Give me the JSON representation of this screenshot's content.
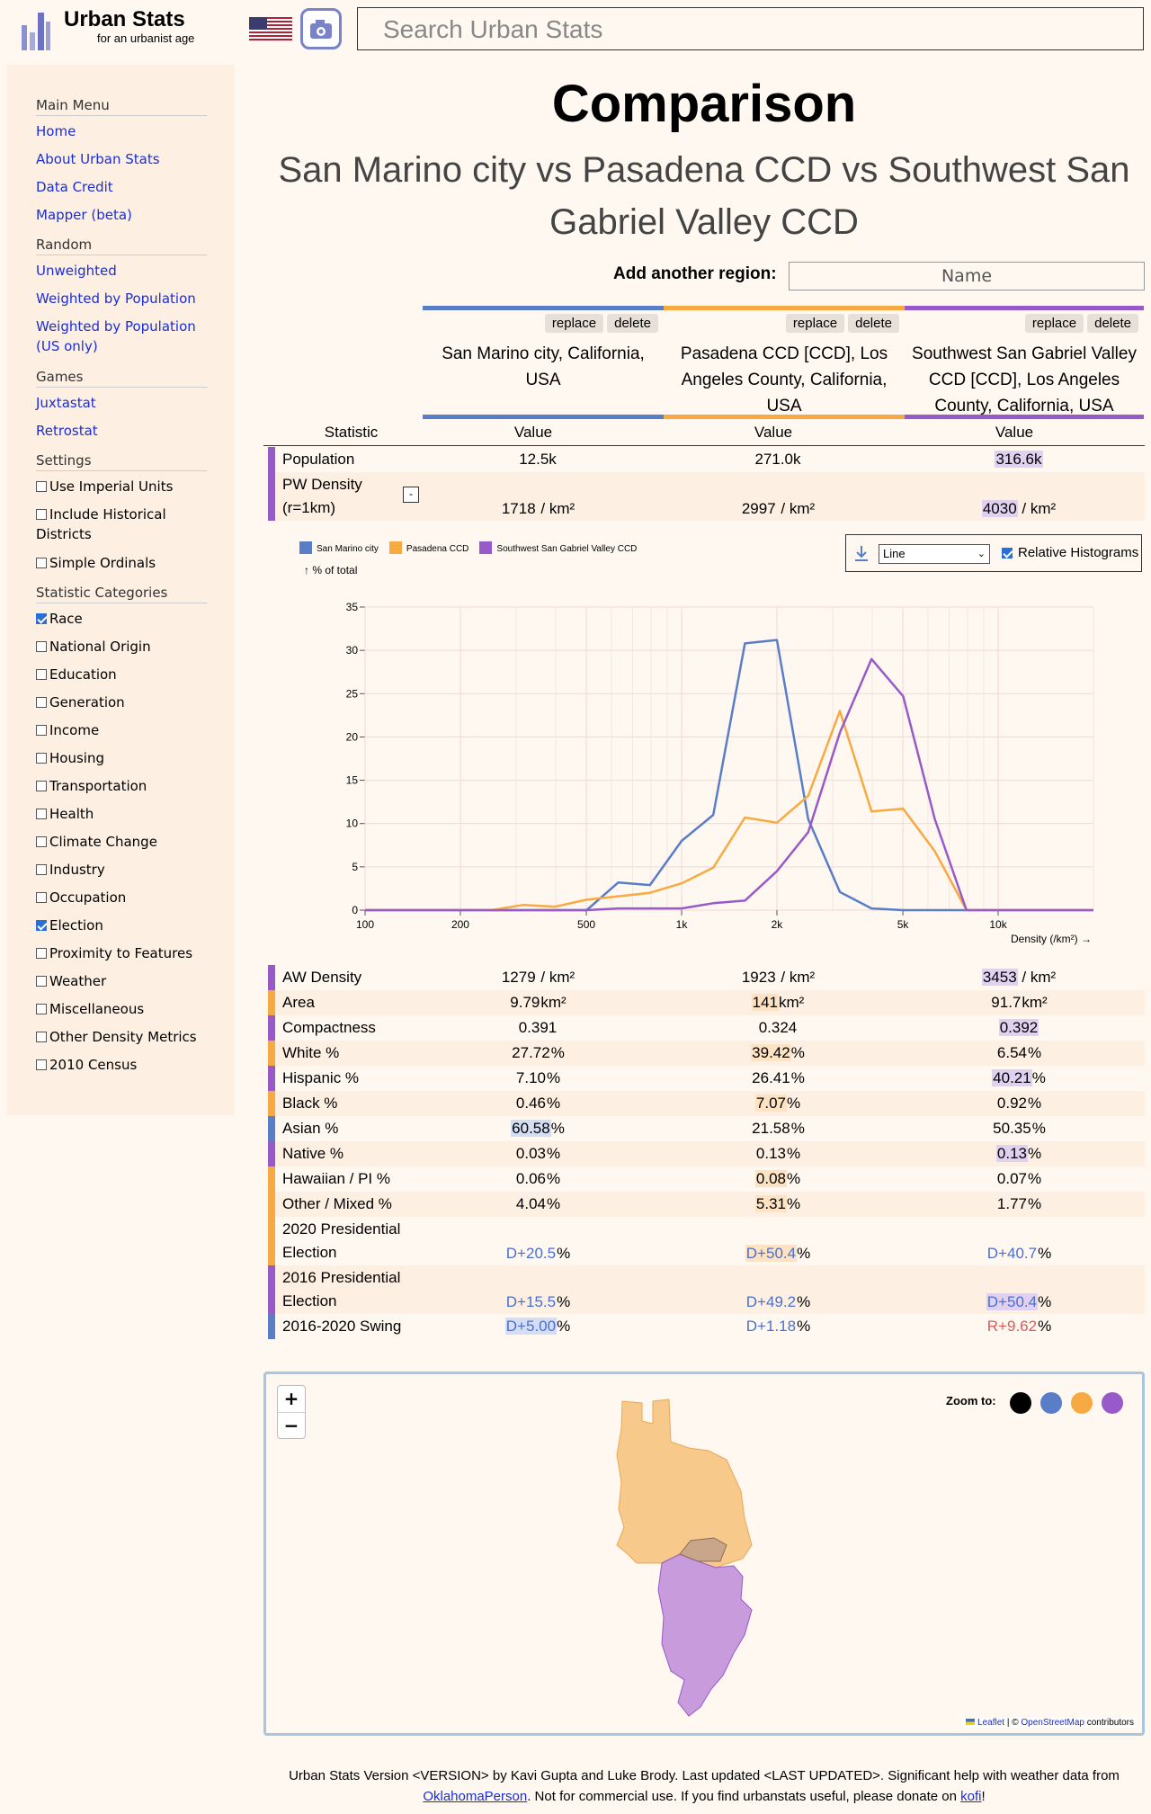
{
  "header": {
    "brand": "Urban Stats",
    "tagline": "for an urbanist age",
    "search_placeholder": "Search Urban Stats"
  },
  "sidebar": {
    "main_menu": "Main Menu",
    "main_links": [
      "Home",
      "About Urban Stats",
      "Data Credit",
      "Mapper (beta)"
    ],
    "random": "Random",
    "random_links": [
      "Unweighted",
      "Weighted by Population",
      "Weighted by Population (US only)"
    ],
    "games": "Games",
    "game_links": [
      "Juxtastat",
      "Retrostat"
    ],
    "settings": "Settings",
    "settings_items": [
      {
        "label": "Use Imperial Units",
        "checked": false
      },
      {
        "label": "Include Historical Districts",
        "checked": false
      },
      {
        "label": "Simple Ordinals",
        "checked": false
      }
    ],
    "categories": "Statistic Categories",
    "category_items": [
      {
        "label": "Race",
        "checked": true
      },
      {
        "label": "National Origin",
        "checked": false
      },
      {
        "label": "Education",
        "checked": false
      },
      {
        "label": "Generation",
        "checked": false
      },
      {
        "label": "Income",
        "checked": false
      },
      {
        "label": "Housing",
        "checked": false
      },
      {
        "label": "Transportation",
        "checked": false
      },
      {
        "label": "Health",
        "checked": false
      },
      {
        "label": "Climate Change",
        "checked": false
      },
      {
        "label": "Industry",
        "checked": false
      },
      {
        "label": "Occupation",
        "checked": false
      },
      {
        "label": "Election",
        "checked": true
      },
      {
        "label": "Proximity to Features",
        "checked": false
      },
      {
        "label": "Weather",
        "checked": false
      },
      {
        "label": "Miscellaneous",
        "checked": false
      },
      {
        "label": "Other Density Metrics",
        "checked": false
      },
      {
        "label": "2010 Census",
        "checked": false
      }
    ]
  },
  "main": {
    "title": "Comparison",
    "subtitle": "San Marino city vs Pasadena CCD vs Southwest San Gabriel Valley CCD",
    "add_label": "Add another region:",
    "add_placeholder": "Name",
    "replace_label": "replace",
    "delete_label": "delete",
    "regions": [
      {
        "name": "San Marino city, California, USA",
        "color": "#5a7dc8"
      },
      {
        "name": "Pasadena CCD [CCD], Los Angeles County, California, USA",
        "color": "#f7aa41"
      },
      {
        "name": "Southwest San Gabriel Valley CCD [CCD], Los Angeles County, California, USA",
        "color": "#975ac8"
      }
    ],
    "col_statistic": "Statistic",
    "col_value": "Value"
  },
  "stats_top": [
    {
      "label": "Population",
      "bar": "#975ac8",
      "values": [
        "12.5k",
        "271.0k",
        "316.6k"
      ],
      "hl": 2,
      "unit": ""
    },
    {
      "label": "PW Density (r=1km)",
      "bar": "#975ac8",
      "values": [
        "1718",
        "2997",
        "4030"
      ],
      "hl": 2,
      "unit": " / km²"
    }
  ],
  "chart_data": {
    "type": "line",
    "ylabel": "% of total",
    "xlabel": "Density (/km²) →",
    "x_scale": "log",
    "xlim": [
      100,
      20000
    ],
    "ylim": [
      0,
      35
    ],
    "yticks": [
      0,
      5,
      10,
      15,
      20,
      25,
      30,
      35
    ],
    "xticks": [
      {
        "v": 100,
        "label": "100"
      },
      {
        "v": 200,
        "label": "200"
      },
      {
        "v": 500,
        "label": "500"
      },
      {
        "v": 1000,
        "label": "1k"
      },
      {
        "v": 2000,
        "label": "2k"
      },
      {
        "v": 5000,
        "label": "5k"
      },
      {
        "v": 10000,
        "label": "10k"
      }
    ],
    "x": [
      100,
      126,
      158,
      200,
      251,
      316,
      398,
      501,
      631,
      794,
      1000,
      1259,
      1585,
      2000,
      2512,
      3162,
      3981,
      5012,
      6310,
      7943,
      10000,
      12589,
      15849,
      20000
    ],
    "series": [
      {
        "name": "San Marino city",
        "color": "#5a7dc8",
        "values": [
          0,
          0,
          0,
          0,
          0,
          0,
          0,
          0,
          3.2,
          2.9,
          8,
          11,
          30.8,
          31.2,
          10.5,
          2.1,
          0.2,
          0,
          0,
          0,
          0,
          0,
          0,
          0
        ]
      },
      {
        "name": "Pasadena CCD",
        "color": "#f7aa41",
        "values": [
          0,
          0,
          0,
          0,
          0,
          0.6,
          0.4,
          1.2,
          1.6,
          2,
          3.1,
          4.9,
          10.7,
          10.1,
          13.2,
          23,
          11.4,
          11.7,
          6.8,
          0,
          0,
          0,
          0,
          0
        ]
      },
      {
        "name": "Southwest San Gabriel Valley CCD",
        "color": "#975ac8",
        "values": [
          0,
          0,
          0,
          0,
          0,
          0,
          0,
          0,
          0.2,
          0.2,
          0.2,
          0.8,
          1.1,
          4.5,
          9,
          20.5,
          29,
          24.7,
          10.5,
          0,
          0,
          0,
          0,
          0
        ]
      }
    ],
    "controls": {
      "style": "Line",
      "relative": "Relative Histograms"
    },
    "grid": true
  },
  "stats_bottom": [
    {
      "label": "AW Density",
      "bar": "#975ac8",
      "values": [
        "1279",
        "1923",
        "3453"
      ],
      "hl": 2,
      "unit": " / km²",
      "lines": 1
    },
    {
      "label": "Area",
      "bar": "#f7aa41",
      "values": [
        "9.79",
        "141",
        "91.7"
      ],
      "hl": 1,
      "unit": "km²",
      "lines": 1
    },
    {
      "label": "Compactness",
      "bar": "#975ac8",
      "values": [
        "0.391",
        "0.324",
        "0.392"
      ],
      "hl": 2,
      "unit": "",
      "lines": 1
    },
    {
      "label": "White %",
      "bar": "#f7aa41",
      "values": [
        "27.72",
        "39.42",
        "6.54"
      ],
      "hl": 1,
      "unit": "%",
      "lines": 1
    },
    {
      "label": "Hispanic %",
      "bar": "#975ac8",
      "values": [
        "7.10",
        "26.41",
        "40.21"
      ],
      "hl": 2,
      "unit": "%",
      "lines": 1
    },
    {
      "label": "Black %",
      "bar": "#f7aa41",
      "values": [
        "0.46",
        "7.07",
        "0.92"
      ],
      "hl": 1,
      "unit": "%",
      "lines": 1
    },
    {
      "label": "Asian %",
      "bar": "#5a7dc8",
      "values": [
        "60.58",
        "21.58",
        "50.35"
      ],
      "hl": 0,
      "unit": "%",
      "lines": 1
    },
    {
      "label": "Native %",
      "bar": "#975ac8",
      "values": [
        "0.03",
        "0.13",
        "0.13"
      ],
      "hl": 2,
      "unit": "%",
      "lines": 1
    },
    {
      "label": "Hawaiian / PI %",
      "bar": "#f7aa41",
      "values": [
        "0.06",
        "0.08",
        "0.07"
      ],
      "hl": 1,
      "unit": "%",
      "lines": 1
    },
    {
      "label": "Other / Mixed %",
      "bar": "#f7aa41",
      "values": [
        "4.04",
        "5.31",
        "1.77"
      ],
      "hl": 1,
      "unit": "%",
      "lines": 1
    },
    {
      "label": "2020 Presidential Election",
      "bar": "#f7aa41",
      "values": [
        "D+20.5",
        "D+50.4",
        "D+40.7"
      ],
      "hl": 1,
      "unit": "%",
      "lines": 2,
      "party": [
        "D",
        "D",
        "D"
      ]
    },
    {
      "label": "2016 Presidential Election",
      "bar": "#975ac8",
      "values": [
        "D+15.5",
        "D+49.2",
        "D+50.4"
      ],
      "hl": 2,
      "unit": "%",
      "lines": 2,
      "party": [
        "D",
        "D",
        "D"
      ]
    },
    {
      "label": "2016-2020 Swing",
      "bar": "#5a7dc8",
      "values": [
        "D+5.00",
        "D+1.18",
        "R+9.62"
      ],
      "hl": 0,
      "unit": "%",
      "lines": 1,
      "party": [
        "D",
        "D",
        "R"
      ]
    }
  ],
  "map": {
    "zoom_in": "+",
    "zoom_out": "−",
    "zoom_to": "Zoom to:",
    "zoom_colors": [
      "#000000",
      "#5a7dc8",
      "#f7aa41",
      "#975ac8"
    ],
    "attribution_leaflet": "Leaflet",
    "attribution_osm": "OpenStreetMap",
    "attribution_tail": " contributors",
    "attribution_sep": " | © "
  },
  "footer": {
    "line1": "Urban Stats Version <VERSION> by Kavi Gupta and Luke Brody. Last updated <LAST UPDATED>. Significant help with weather data from",
    "link1": "OklahomaPerson",
    "mid": ". Not for commercial use. If you find urbanstats useful, please donate on ",
    "link2": "kofi",
    "end": "!"
  }
}
